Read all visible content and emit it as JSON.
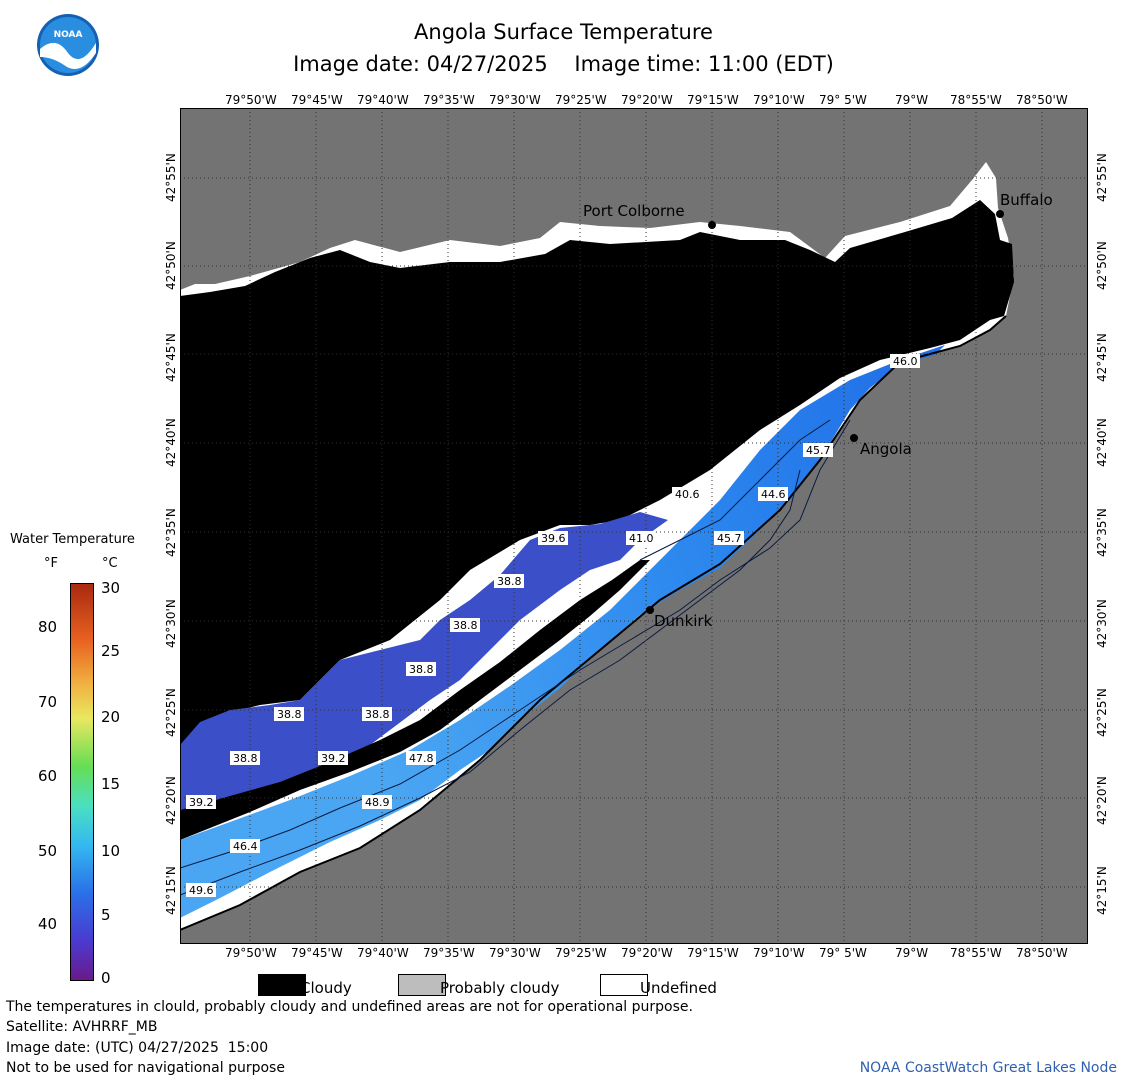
{
  "header": {
    "title": "Angola Surface Temperature",
    "subtitle": "Image date: 04/27/2025    Image time: 11:00 (EDT)"
  },
  "axes": {
    "lon_ticks": [
      "79°50'W",
      "79°45'W",
      "79°40'W",
      "79°35'W",
      "79°30'W",
      "79°25'W",
      "79°20'W",
      "79°15'W",
      "79°10'W",
      "79° 5'W",
      "79°W",
      "78°55'W",
      "78°50'W"
    ],
    "lat_ticks": [
      "42°55'N",
      "42°50'N",
      "42°45'N",
      "42°40'N",
      "42°35'N",
      "42°30'N",
      "42°25'N",
      "42°20'N",
      "42°15'N"
    ]
  },
  "places": [
    {
      "name": "Port Colborne"
    },
    {
      "name": "Buffalo"
    },
    {
      "name": "Angola"
    },
    {
      "name": "Dunkirk"
    }
  ],
  "temperature_labels": [
    "46.0",
    "45.7",
    "44.6",
    "40.6",
    "41.0",
    "45.7",
    "39.6",
    "38.8",
    "38.8",
    "38.8",
    "38.8",
    "38.8",
    "38.8",
    "39.2",
    "39.2",
    "47.8",
    "48.9",
    "46.4",
    "49.6"
  ],
  "legend": {
    "title": "Water Temperature",
    "unit_f": "°F",
    "unit_c": "°C",
    "f_ticks": [
      "80",
      "70",
      "60",
      "50",
      "40"
    ],
    "c_ticks": [
      "30",
      "25",
      "20",
      "15",
      "10",
      "5",
      "0"
    ]
  },
  "key": {
    "cloudy": "Cloudy",
    "probably_cloudy": "Probably cloudy",
    "undefined": "Undefined"
  },
  "footer": {
    "line1": "The temperatures in clould, probably cloudy and undefined areas are not for operational purpose.",
    "line2": "Satellite: AVHRRF_MB",
    "line3": "Image date: (UTC) 04/27/2025  15:00",
    "line4": "Not to be used for navigational purpose",
    "credit": "NOAA CoastWatch Great Lakes Node"
  },
  "colors": {
    "land": "#737373",
    "cloud": "#000000",
    "water_dark": "#3a50c8",
    "water_mid": "#1f6fe6",
    "water_light": "#38a8f0"
  }
}
